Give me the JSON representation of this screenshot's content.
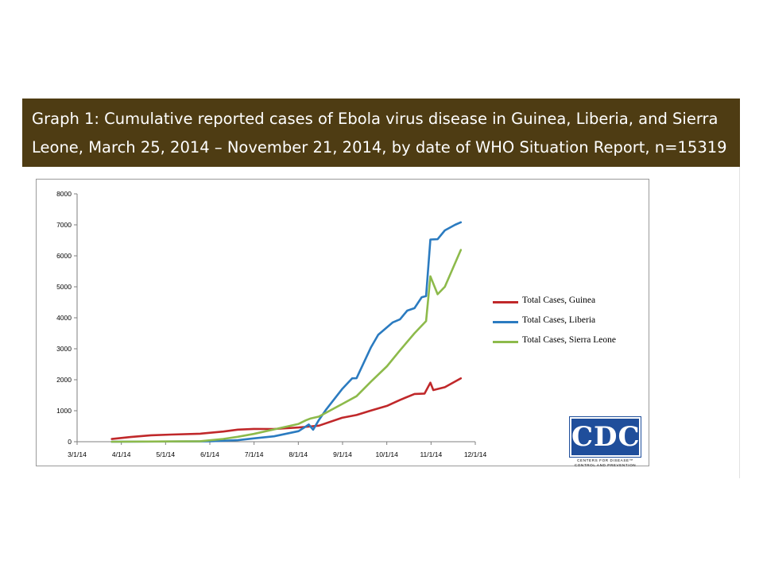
{
  "title": {
    "line1": "Graph 1: Cumulative reported cases of Ebola virus disease in Guinea, Liberia, and Sierra",
    "line2": "Leone, March 25, 2014 – November 21, 2014, by date of WHO Situation Report, n=15319"
  },
  "logo": {
    "text": "CDC",
    "sub1": "CENTERS FOR DISEASE™",
    "sub2": "CONTROL AND PREVENTION"
  },
  "colors": {
    "title_bar": "#4e3c13",
    "guinea": "#c0282a",
    "liberia": "#2b7bc0",
    "sierra_leone": "#8dba4b",
    "logo": "#1f4e9b"
  },
  "chart_data": {
    "type": "line",
    "title": "",
    "xlabel": "",
    "ylabel": "",
    "xlim": [
      "2014-03-01",
      "2014-12-01"
    ],
    "ylim": [
      0,
      8000
    ],
    "x_ticks": [
      "3/1/14",
      "4/1/14",
      "5/1/14",
      "6/1/14",
      "7/1/14",
      "8/1/14",
      "9/1/14",
      "10/1/14",
      "11/1/14",
      "12/1/14"
    ],
    "y_ticks": [
      0,
      1000,
      2000,
      3000,
      4000,
      5000,
      6000,
      7000,
      8000
    ],
    "grid": false,
    "legend": "right",
    "series": [
      {
        "name": "Total Cases, Guinea",
        "color": "#c0282a",
        "points": [
          [
            "2014-03-25",
            86
          ],
          [
            "2014-04-07",
            151
          ],
          [
            "2014-04-21",
            208
          ],
          [
            "2014-05-05",
            231
          ],
          [
            "2014-05-25",
            258
          ],
          [
            "2014-06-10",
            328
          ],
          [
            "2014-06-20",
            390
          ],
          [
            "2014-07-01",
            413
          ],
          [
            "2014-07-15",
            411
          ],
          [
            "2014-08-01",
            460
          ],
          [
            "2014-08-15",
            519
          ],
          [
            "2014-08-31",
            771
          ],
          [
            "2014-09-10",
            862
          ],
          [
            "2014-09-20",
            1008
          ],
          [
            "2014-10-01",
            1157
          ],
          [
            "2014-10-10",
            1350
          ],
          [
            "2014-10-20",
            1540
          ],
          [
            "2014-10-27",
            1553
          ],
          [
            "2014-10-31",
            1906
          ],
          [
            "2014-11-02",
            1667
          ],
          [
            "2014-11-10",
            1760
          ],
          [
            "2014-11-21",
            2047
          ]
        ]
      },
      {
        "name": "Total Cases, Liberia",
        "color": "#2b7bc0",
        "points": [
          [
            "2014-03-25",
            0
          ],
          [
            "2014-06-01",
            13
          ],
          [
            "2014-06-20",
            49
          ],
          [
            "2014-07-01",
            107
          ],
          [
            "2014-07-15",
            174
          ],
          [
            "2014-08-01",
            340
          ],
          [
            "2014-08-08",
            554
          ],
          [
            "2014-08-11",
            386
          ],
          [
            "2014-08-15",
            700
          ],
          [
            "2014-08-20",
            1040
          ],
          [
            "2014-08-31",
            1698
          ],
          [
            "2014-09-07",
            2046
          ],
          [
            "2014-09-10",
            2050
          ],
          [
            "2014-09-20",
            3050
          ],
          [
            "2014-09-25",
            3450
          ],
          [
            "2014-10-05",
            3850
          ],
          [
            "2014-10-10",
            3950
          ],
          [
            "2014-10-15",
            4230
          ],
          [
            "2014-10-20",
            4310
          ],
          [
            "2014-10-25",
            4665
          ],
          [
            "2014-10-28",
            4700
          ],
          [
            "2014-10-31",
            6525
          ],
          [
            "2014-11-05",
            6535
          ],
          [
            "2014-11-10",
            6820
          ],
          [
            "2014-11-17",
            7000
          ],
          [
            "2014-11-21",
            7082
          ]
        ]
      },
      {
        "name": "Total Cases, Sierra Leone",
        "color": "#8dba4b",
        "points": [
          [
            "2014-03-25",
            0
          ],
          [
            "2014-05-25",
            16
          ],
          [
            "2014-06-10",
            89
          ],
          [
            "2014-06-20",
            158
          ],
          [
            "2014-07-01",
            252
          ],
          [
            "2014-07-15",
            397
          ],
          [
            "2014-08-01",
            574
          ],
          [
            "2014-08-06",
            691
          ],
          [
            "2014-08-09",
            746
          ],
          [
            "2014-08-15",
            810
          ],
          [
            "2014-08-31",
            1216
          ],
          [
            "2014-09-10",
            1470
          ],
          [
            "2014-09-20",
            1940
          ],
          [
            "2014-10-01",
            2437
          ],
          [
            "2014-10-10",
            2950
          ],
          [
            "2014-10-20",
            3500
          ],
          [
            "2014-10-28",
            3896
          ],
          [
            "2014-10-31",
            5338
          ],
          [
            "2014-11-05",
            4759
          ],
          [
            "2014-11-10",
            5000
          ],
          [
            "2014-11-21",
            6190
          ]
        ]
      }
    ]
  }
}
